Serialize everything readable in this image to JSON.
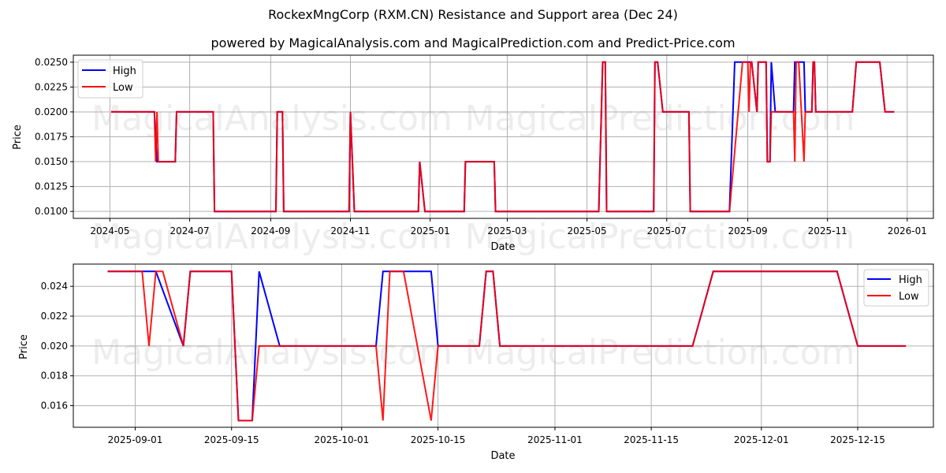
{
  "header": {
    "title": "RockexMngCorp (RXM.CN) Resistance and Support area (Dec 24)",
    "subtitle": "powered by MagicalAnalysis.com and MagicalPrediction.com and Predict-Price.com"
  },
  "watermarks": [
    "MagicalAnalysis.com",
    "MagicalPrediction.com"
  ],
  "colors": {
    "high": "#0000ff",
    "low": "#ff0000",
    "grid": "#b0b0b0",
    "axis": "#000000"
  },
  "chart_data": [
    {
      "type": "line",
      "title": "",
      "xlabel": "Date",
      "ylabel": "Price",
      "ylim": [
        0.0093,
        0.0257
      ],
      "xlim": [
        "2024-04-03",
        "2026-01-21"
      ],
      "grid": true,
      "legend_position": "upper left",
      "yticks": [
        "0.0100",
        "0.0125",
        "0.0150",
        "0.0175",
        "0.0200",
        "0.0225",
        "0.0250"
      ],
      "xticks": [
        "2024-05",
        "2024-07",
        "2024-09",
        "2024-11",
        "2025-01",
        "2025-03",
        "2025-05",
        "2025-07",
        "2025-09",
        "2025-11",
        "2026-01"
      ],
      "series": [
        {
          "name": "High",
          "points": [
            [
              "2024-05-02",
              0.02
            ],
            [
              "2024-06-04",
              0.02
            ],
            [
              "2024-06-06",
              0.015
            ],
            [
              "2024-06-20",
              0.015
            ],
            [
              "2024-06-21",
              0.02
            ],
            [
              "2024-07-19",
              0.02
            ],
            [
              "2024-07-20",
              0.01
            ],
            [
              "2024-09-05",
              0.01
            ],
            [
              "2024-09-06",
              0.02
            ],
            [
              "2024-09-10",
              0.02
            ],
            [
              "2024-09-11",
              0.01
            ],
            [
              "2024-10-31",
              0.01
            ],
            [
              "2024-11-01",
              0.02
            ],
            [
              "2024-11-04",
              0.01
            ],
            [
              "2024-12-23",
              0.01
            ],
            [
              "2024-12-24",
              0.015
            ],
            [
              "2024-12-28",
              0.01
            ],
            [
              "2025-01-27",
              0.01
            ],
            [
              "2025-01-28",
              0.015
            ],
            [
              "2025-02-19",
              0.015
            ],
            [
              "2025-02-20",
              0.01
            ],
            [
              "2025-05-10",
              0.01
            ],
            [
              "2025-05-13",
              0.025
            ],
            [
              "2025-05-15",
              0.025
            ],
            [
              "2025-05-16",
              0.01
            ],
            [
              "2025-06-21",
              0.01
            ],
            [
              "2025-06-22",
              0.025
            ],
            [
              "2025-06-24",
              0.025
            ],
            [
              "2025-06-28",
              0.02
            ],
            [
              "2025-07-18",
              0.02
            ],
            [
              "2025-07-19",
              0.01
            ],
            [
              "2025-08-18",
              0.01
            ],
            [
              "2025-08-22",
              0.025
            ],
            [
              "2025-09-01",
              0.025
            ],
            [
              "2025-09-03",
              0.025
            ],
            [
              "2025-09-04",
              0.025
            ],
            [
              "2025-09-08",
              0.02
            ],
            [
              "2025-09-09",
              0.025
            ],
            [
              "2025-09-15",
              0.025
            ],
            [
              "2025-09-16",
              0.015
            ],
            [
              "2025-09-18",
              0.015
            ],
            [
              "2025-09-19",
              0.025
            ],
            [
              "2025-09-22",
              0.02
            ],
            [
              "2025-10-06",
              0.02
            ],
            [
              "2025-10-07",
              0.025
            ],
            [
              "2025-10-14",
              0.025
            ],
            [
              "2025-10-15",
              0.02
            ],
            [
              "2025-10-20",
              0.02
            ],
            [
              "2025-10-21",
              0.025
            ],
            [
              "2025-10-22",
              0.025
            ],
            [
              "2025-10-23",
              0.02
            ],
            [
              "2025-11-20",
              0.02
            ],
            [
              "2025-11-23",
              0.025
            ],
            [
              "2025-12-11",
              0.025
            ],
            [
              "2025-12-15",
              0.02
            ],
            [
              "2025-12-22",
              0.02
            ]
          ]
        },
        {
          "name": "Low",
          "points": [
            [
              "2024-05-02",
              0.02
            ],
            [
              "2024-06-04",
              0.02
            ],
            [
              "2024-06-05",
              0.015
            ],
            [
              "2024-06-06",
              0.02
            ],
            [
              "2024-06-07",
              0.015
            ],
            [
              "2024-06-20",
              0.015
            ],
            [
              "2024-06-21",
              0.02
            ],
            [
              "2024-07-19",
              0.02
            ],
            [
              "2024-07-20",
              0.01
            ],
            [
              "2024-09-05",
              0.01
            ],
            [
              "2024-09-06",
              0.02
            ],
            [
              "2024-09-10",
              0.02
            ],
            [
              "2024-09-11",
              0.01
            ],
            [
              "2024-10-31",
              0.01
            ],
            [
              "2024-11-01",
              0.02
            ],
            [
              "2024-11-04",
              0.01
            ],
            [
              "2024-12-23",
              0.01
            ],
            [
              "2024-12-24",
              0.015
            ],
            [
              "2024-12-28",
              0.01
            ],
            [
              "2025-01-27",
              0.01
            ],
            [
              "2025-01-28",
              0.015
            ],
            [
              "2025-02-19",
              0.015
            ],
            [
              "2025-02-20",
              0.01
            ],
            [
              "2025-05-10",
              0.01
            ],
            [
              "2025-05-13",
              0.025
            ],
            [
              "2025-05-15",
              0.025
            ],
            [
              "2025-05-16",
              0.01
            ],
            [
              "2025-06-21",
              0.01
            ],
            [
              "2025-06-22",
              0.025
            ],
            [
              "2025-06-24",
              0.025
            ],
            [
              "2025-06-28",
              0.02
            ],
            [
              "2025-07-18",
              0.02
            ],
            [
              "2025-07-19",
              0.01
            ],
            [
              "2025-08-18",
              0.01
            ],
            [
              "2025-08-28",
              0.025
            ],
            [
              "2025-09-01",
              0.025
            ],
            [
              "2025-09-02",
              0.02
            ],
            [
              "2025-09-03",
              0.025
            ],
            [
              "2025-09-04",
              0.025
            ],
            [
              "2025-09-08",
              0.02
            ],
            [
              "2025-09-09",
              0.025
            ],
            [
              "2025-09-15",
              0.025
            ],
            [
              "2025-09-16",
              0.015
            ],
            [
              "2025-09-18",
              0.015
            ],
            [
              "2025-09-19",
              0.02
            ],
            [
              "2025-10-06",
              0.02
            ],
            [
              "2025-10-07",
              0.015
            ],
            [
              "2025-10-08",
              0.025
            ],
            [
              "2025-10-10",
              0.025
            ],
            [
              "2025-10-14",
              0.015
            ],
            [
              "2025-10-15",
              0.02
            ],
            [
              "2025-10-20",
              0.02
            ],
            [
              "2025-10-21",
              0.025
            ],
            [
              "2025-10-22",
              0.025
            ],
            [
              "2025-10-23",
              0.02
            ],
            [
              "2025-11-20",
              0.02
            ],
            [
              "2025-11-23",
              0.025
            ],
            [
              "2025-12-11",
              0.025
            ],
            [
              "2025-12-15",
              0.02
            ],
            [
              "2025-12-22",
              0.02
            ]
          ]
        }
      ]
    },
    {
      "type": "line",
      "title": "",
      "xlabel": "Date",
      "ylabel": "Price",
      "ylim": [
        0.01455,
        0.02549
      ],
      "xlim": [
        "2025-08-23",
        "2025-12-26"
      ],
      "grid": true,
      "legend_position": "upper right",
      "yticks": [
        "0.016",
        "0.018",
        "0.020",
        "0.022",
        "0.024"
      ],
      "xticks": [
        "2025-09-01",
        "2025-09-15",
        "2025-10-01",
        "2025-10-15",
        "2025-11-01",
        "2025-11-15",
        "2025-12-01",
        "2025-12-15"
      ],
      "series": [
        {
          "name": "High",
          "points": [
            [
              "2025-08-28",
              0.025
            ],
            [
              "2025-09-02",
              0.025
            ],
            [
              "2025-09-03",
              0.025
            ],
            [
              "2025-09-04",
              0.025
            ],
            [
              "2025-09-08",
              0.02
            ],
            [
              "2025-09-09",
              0.025
            ],
            [
              "2025-09-15",
              0.025
            ],
            [
              "2025-09-16",
              0.015
            ],
            [
              "2025-09-18",
              0.015
            ],
            [
              "2025-09-19",
              0.025
            ],
            [
              "2025-09-22",
              0.02
            ],
            [
              "2025-10-06",
              0.02
            ],
            [
              "2025-10-07",
              0.025
            ],
            [
              "2025-10-14",
              0.025
            ],
            [
              "2025-10-15",
              0.02
            ],
            [
              "2025-10-21",
              0.02
            ],
            [
              "2025-10-22",
              0.025
            ],
            [
              "2025-10-23",
              0.025
            ],
            [
              "2025-10-24",
              0.02
            ],
            [
              "2025-11-21",
              0.02
            ],
            [
              "2025-11-24",
              0.025
            ],
            [
              "2025-12-12",
              0.025
            ],
            [
              "2025-12-15",
              0.02
            ],
            [
              "2025-12-22",
              0.02
            ]
          ]
        },
        {
          "name": "Low",
          "points": [
            [
              "2025-08-28",
              0.025
            ],
            [
              "2025-09-02",
              0.025
            ],
            [
              "2025-09-03",
              0.02
            ],
            [
              "2025-09-04",
              0.025
            ],
            [
              "2025-09-05",
              0.025
            ],
            [
              "2025-09-08",
              0.02
            ],
            [
              "2025-09-09",
              0.025
            ],
            [
              "2025-09-15",
              0.025
            ],
            [
              "2025-09-16",
              0.015
            ],
            [
              "2025-09-18",
              0.015
            ],
            [
              "2025-09-19",
              0.02
            ],
            [
              "2025-10-06",
              0.02
            ],
            [
              "2025-10-07",
              0.015
            ],
            [
              "2025-10-08",
              0.025
            ],
            [
              "2025-10-10",
              0.025
            ],
            [
              "2025-10-14",
              0.015
            ],
            [
              "2025-10-15",
              0.02
            ],
            [
              "2025-10-21",
              0.02
            ],
            [
              "2025-10-22",
              0.025
            ],
            [
              "2025-10-23",
              0.025
            ],
            [
              "2025-10-24",
              0.02
            ],
            [
              "2025-11-21",
              0.02
            ],
            [
              "2025-11-24",
              0.025
            ],
            [
              "2025-12-12",
              0.025
            ],
            [
              "2025-12-15",
              0.02
            ],
            [
              "2025-12-22",
              0.02
            ]
          ]
        }
      ]
    }
  ]
}
